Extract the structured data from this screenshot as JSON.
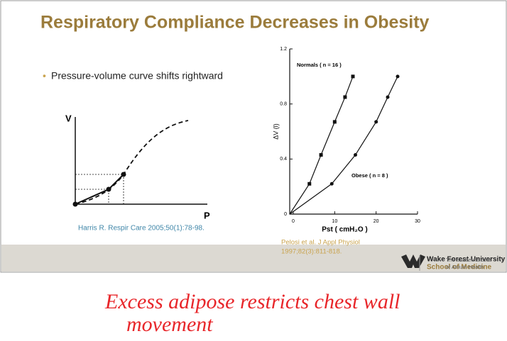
{
  "slide": {
    "title": "Respiratory Compliance Decreases in Obesity",
    "bullet": "Pressure-volume curve shifts rightward",
    "sketch": {
      "y_label": "V",
      "x_label": "P",
      "citation": "Harris R. Respir Care 2005;50(1):78-98."
    },
    "chart_data": {
      "type": "scatter",
      "y_label": "ΔV (l)",
      "x_label": "Pst ( cmH₂O )",
      "xlim": [
        0,
        30
      ],
      "xticks": [
        0,
        10,
        20,
        30
      ],
      "ylim": [
        0,
        1.2
      ],
      "yticks": [
        0,
        0.4,
        0.8,
        1.2
      ],
      "series": [
        {
          "name": "Normals ( n = 16 )",
          "color": "#111111",
          "marker": "square",
          "x": [
            3.9,
            6.7,
            10,
            12.5,
            14.4
          ],
          "values": [
            0.22,
            0.43,
            0.67,
            0.85,
            1.0
          ]
        },
        {
          "name": "Obese ( n = 8 )",
          "color": "#111111",
          "marker": "circle",
          "x": [
            9.3,
            15,
            20,
            22.8,
            25.2
          ],
          "values": [
            0.22,
            0.43,
            0.67,
            0.85,
            1.0
          ]
        }
      ]
    },
    "citation": [
      "Pelosi et al. J Appl Physiol",
      "1997;82(3):811-818."
    ],
    "footer": {
      "school": [
        "Wake Forest University",
        "School of Medicine"
      ],
      "tagline": [
        "The academic core",
        "of Atrium Health"
      ]
    }
  },
  "annotation": [
    "Excess adipose restricts chest wall",
    "movement"
  ]
}
